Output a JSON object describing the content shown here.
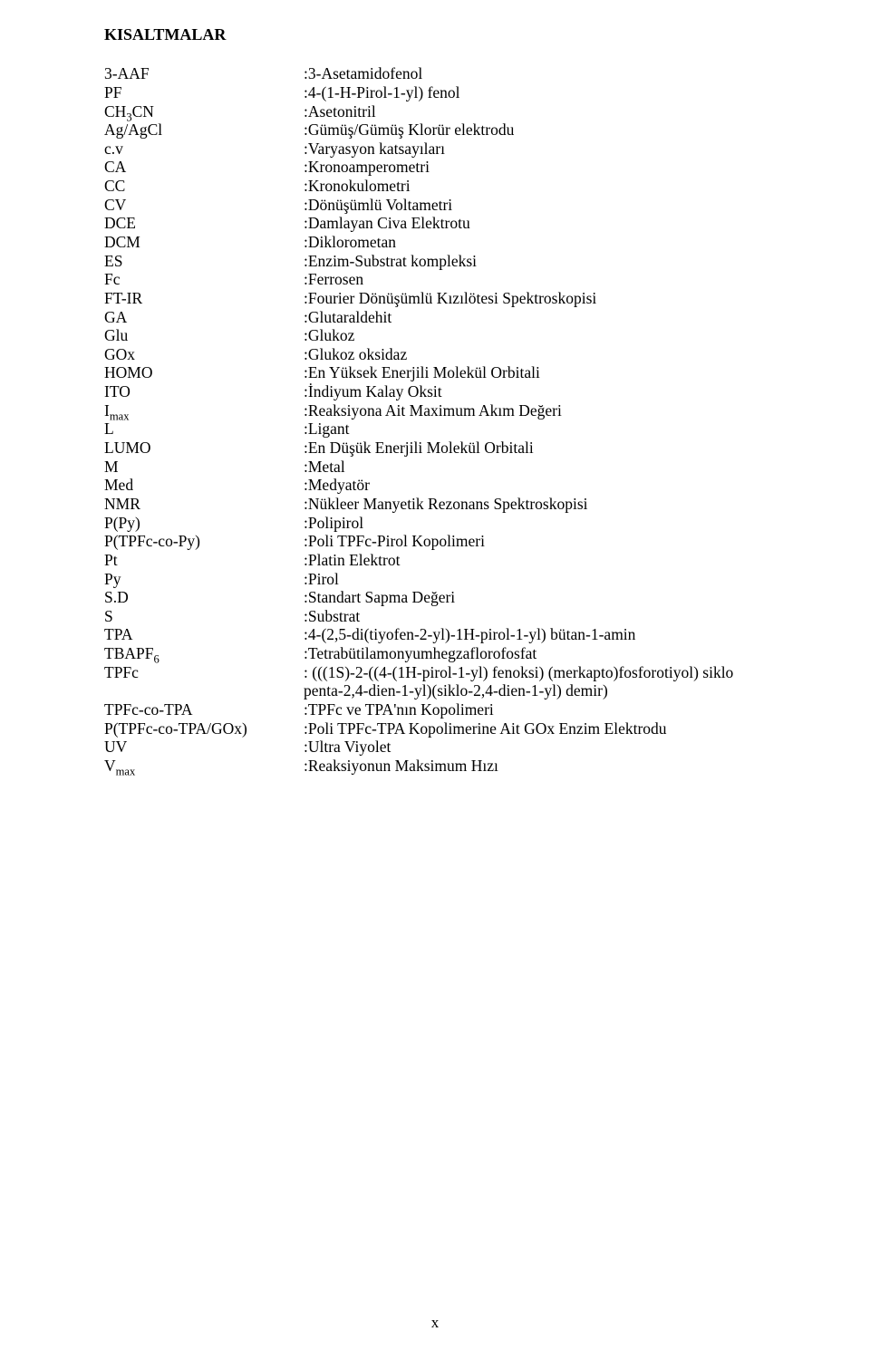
{
  "title": "KISALTMALAR",
  "page_number": "x",
  "entries": [
    {
      "abbr_html": "3-AAF",
      "def_html": ":3-Asetamidofenol"
    },
    {
      "abbr_html": "PF",
      "def_html": ":4-(1-H-Pirol-1-yl) fenol"
    },
    {
      "abbr_html": "CH<span class=\"sub\">3</span>CN",
      "def_html": ":Asetonitril"
    },
    {
      "abbr_html": "Ag/AgCl",
      "def_html": ":Gümüş/Gümüş Klorür elektrodu"
    },
    {
      "abbr_html": "c.v",
      "def_html": ":Varyasyon katsayıları"
    },
    {
      "abbr_html": "CA",
      "def_html": ":Kronoamperometri"
    },
    {
      "abbr_html": "CC",
      "def_html": ":Kronokulometri"
    },
    {
      "abbr_html": "CV",
      "def_html": ":Dönüşümlü Voltametri"
    },
    {
      "abbr_html": "DCE",
      "def_html": ":Damlayan Civa Elektrotu"
    },
    {
      "abbr_html": "DCM",
      "def_html": ":Diklorometan"
    },
    {
      "abbr_html": "ES",
      "def_html": ":Enzim-Substrat kompleksi"
    },
    {
      "abbr_html": "Fc",
      "def_html": ":Ferrosen"
    },
    {
      "abbr_html": "FT-IR",
      "def_html": ":Fourier Dönüşümlü Kızılötesi Spektroskopisi"
    },
    {
      "abbr_html": "GA",
      "def_html": ":Glutaraldehit"
    },
    {
      "abbr_html": "Glu",
      "def_html": ":Glukoz"
    },
    {
      "abbr_html": "GOx",
      "def_html": ":Glukoz oksidaz"
    },
    {
      "abbr_html": "HOMO",
      "def_html": ":En Yüksek Enerjili Molekül Orbitali"
    },
    {
      "abbr_html": "ITO",
      "def_html": ":İndiyum Kalay Oksit"
    },
    {
      "abbr_html": "I<span class=\"sub\">max</span>",
      "def_html": ":Reaksiyona Ait Maximum Akım Değeri"
    },
    {
      "abbr_html": "L",
      "def_html": ":Ligant"
    },
    {
      "abbr_html": "LUMO",
      "def_html": ":En Düşük Enerjili Molekül Orbitali"
    },
    {
      "abbr_html": "M",
      "def_html": ":Metal"
    },
    {
      "abbr_html": "Med",
      "def_html": ":Medyatör"
    },
    {
      "abbr_html": "NMR",
      "def_html": ":Nükleer Manyetik Rezonans Spektroskopisi"
    },
    {
      "abbr_html": "P(Py)",
      "def_html": ":Polipirol"
    },
    {
      "abbr_html": "P(TPFc-co-Py)",
      "def_html": ":Poli TPFc-Pirol Kopolimeri"
    },
    {
      "abbr_html": "Pt",
      "def_html": ":Platin Elektrot"
    },
    {
      "abbr_html": "Py",
      "def_html": ":Pirol"
    },
    {
      "abbr_html": "S.D",
      "def_html": ":Standart Sapma Değeri"
    },
    {
      "abbr_html": "S",
      "def_html": ":Substrat"
    },
    {
      "abbr_html": "TPA",
      "def_html": ":4-(2,5-di(tiyofen-2-yl)-1H-pirol-1-yl) bütan-1-amin"
    },
    {
      "abbr_html": "TBAPF<span class=\"sub\">6</span>",
      "def_html": ":Tetrabütilamonyumhegzaflorofosfat"
    },
    {
      "abbr_html": "TPFc",
      "def_html": ": (((1S)-2-((4-(1H-pirol-1-yl) fenoksi) (merkapto)fosforotiyol) siklo penta-2,4-dien-1-yl)(siklo-2,4-dien-1-yl) demir)"
    },
    {
      "abbr_html": "TPFc-co-TPA",
      "def_html": ":TPFc ve TPA'nın Kopolimeri"
    },
    {
      "abbr_html": "P(TPFc-co-TPA/GOx)",
      "def_html": ":Poli TPFc-TPA Kopolimerine Ait GOx Enzim Elektrodu"
    },
    {
      "abbr_html": "UV",
      "def_html": ":Ultra Viyolet"
    },
    {
      "abbr_html": "V<span class=\"sub\">max</span>",
      "def_html": ":Reaksiyonun Maksimum Hızı"
    }
  ]
}
